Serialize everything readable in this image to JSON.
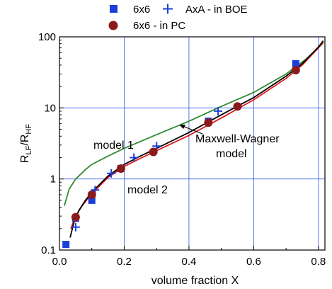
{
  "chart_data": {
    "type": "scatter",
    "title": "",
    "xlabel": "volume fraction X",
    "ylabel": {
      "main": "R",
      "sub1": "LF",
      "sep": "/R",
      "sub2": "HF"
    },
    "xlim": [
      0.0,
      0.82
    ],
    "ylim": [
      0.1,
      100
    ],
    "yscale": "log",
    "grid": true,
    "legend_position": "top",
    "x_ticks": [
      {
        "value": 0.0,
        "label": "0.0"
      },
      {
        "value": 0.2,
        "label": "0.2"
      },
      {
        "value": 0.4,
        "label": "0.4"
      },
      {
        "value": 0.6,
        "label": "0.6"
      },
      {
        "value": 0.8,
        "label": "0.8"
      }
    ],
    "y_ticks": [
      {
        "value": 0.1,
        "label": "0.1"
      },
      {
        "value": 1,
        "label": "1"
      },
      {
        "value": 10,
        "label": "10"
      },
      {
        "value": 100,
        "label": "100"
      }
    ],
    "legend": [
      {
        "marker": "square",
        "color": "#1a3fd9",
        "label": "6x6"
      },
      {
        "marker": "plus",
        "color": "#1a3fd9",
        "label": "AxA  - in BOE"
      },
      {
        "marker": "circle",
        "color": "#8b1a1a",
        "label": "6x6  - in PC"
      }
    ],
    "annotations": [
      {
        "text": "model 1"
      },
      {
        "text": "model 2"
      },
      {
        "text": "Maxwell-Wagner"
      },
      {
        "text": "model"
      }
    ],
    "series": [
      {
        "marker": "square",
        "color": "#1a3fd9",
        "points": [
          {
            "x": 0.02,
            "y": 0.12
          },
          {
            "x": 0.05,
            "y": 0.28
          },
          {
            "x": 0.1,
            "y": 0.5
          },
          {
            "x": 0.19,
            "y": 1.4
          },
          {
            "x": 0.46,
            "y": 6.5
          },
          {
            "x": 0.73,
            "y": 42
          }
        ]
      },
      {
        "marker": "plus",
        "color": "#1a3fd9",
        "points": [
          {
            "x": 0.05,
            "y": 0.21
          },
          {
            "x": 0.11,
            "y": 0.7
          },
          {
            "x": 0.16,
            "y": 1.2
          },
          {
            "x": 0.23,
            "y": 2.0
          },
          {
            "x": 0.3,
            "y": 2.9
          },
          {
            "x": 0.49,
            "y": 9.0
          }
        ]
      },
      {
        "marker": "circle",
        "color": "#8b1a1a",
        "points": [
          {
            "x": 0.05,
            "y": 0.29
          },
          {
            "x": 0.1,
            "y": 0.6
          },
          {
            "x": 0.19,
            "y": 1.4
          },
          {
            "x": 0.29,
            "y": 2.4
          },
          {
            "x": 0.46,
            "y": 6.2
          },
          {
            "x": 0.55,
            "y": 10.5
          },
          {
            "x": 0.73,
            "y": 34
          }
        ]
      }
    ],
    "curves": [
      {
        "color": "#2e8b2e",
        "points": [
          {
            "x": 0.015,
            "y": 0.42
          },
          {
            "x": 0.03,
            "y": 0.72
          },
          {
            "x": 0.05,
            "y": 1.0
          },
          {
            "x": 0.08,
            "y": 1.35
          },
          {
            "x": 0.1,
            "y": 1.6
          },
          {
            "x": 0.15,
            "y": 2.1
          },
          {
            "x": 0.2,
            "y": 2.7
          },
          {
            "x": 0.3,
            "y": 4.2
          },
          {
            "x": 0.4,
            "y": 6.5
          },
          {
            "x": 0.5,
            "y": 10.5
          },
          {
            "x": 0.6,
            "y": 16.5
          },
          {
            "x": 0.7,
            "y": 30
          },
          {
            "x": 0.76,
            "y": 48
          },
          {
            "x": 0.8,
            "y": 70
          },
          {
            "x": 0.815,
            "y": 82
          }
        ]
      },
      {
        "color": "#e01a1a",
        "points": [
          {
            "x": 0.035,
            "y": 0.2
          },
          {
            "x": 0.05,
            "y": 0.3
          },
          {
            "x": 0.07,
            "y": 0.42
          },
          {
            "x": 0.1,
            "y": 0.62
          },
          {
            "x": 0.15,
            "y": 1.05
          },
          {
            "x": 0.2,
            "y": 1.5
          },
          {
            "x": 0.25,
            "y": 1.95
          },
          {
            "x": 0.3,
            "y": 2.5
          },
          {
            "x": 0.4,
            "y": 4.1
          },
          {
            "x": 0.5,
            "y": 7.2
          },
          {
            "x": 0.6,
            "y": 13
          },
          {
            "x": 0.7,
            "y": 26
          },
          {
            "x": 0.75,
            "y": 40
          },
          {
            "x": 0.8,
            "y": 70
          },
          {
            "x": 0.815,
            "y": 85
          }
        ]
      },
      {
        "color": "#000000",
        "points": [
          {
            "x": 0.033,
            "y": 0.15
          },
          {
            "x": 0.045,
            "y": 0.25
          },
          {
            "x": 0.06,
            "y": 0.36
          },
          {
            "x": 0.08,
            "y": 0.5
          },
          {
            "x": 0.1,
            "y": 0.65
          },
          {
            "x": 0.15,
            "y": 1.1
          },
          {
            "x": 0.2,
            "y": 1.6
          },
          {
            "x": 0.25,
            "y": 2.1
          },
          {
            "x": 0.3,
            "y": 2.7
          },
          {
            "x": 0.4,
            "y": 4.5
          },
          {
            "x": 0.5,
            "y": 8.0
          },
          {
            "x": 0.6,
            "y": 14
          },
          {
            "x": 0.7,
            "y": 28
          },
          {
            "x": 0.75,
            "y": 42
          },
          {
            "x": 0.8,
            "y": 72
          },
          {
            "x": 0.815,
            "y": 88
          }
        ]
      }
    ]
  }
}
